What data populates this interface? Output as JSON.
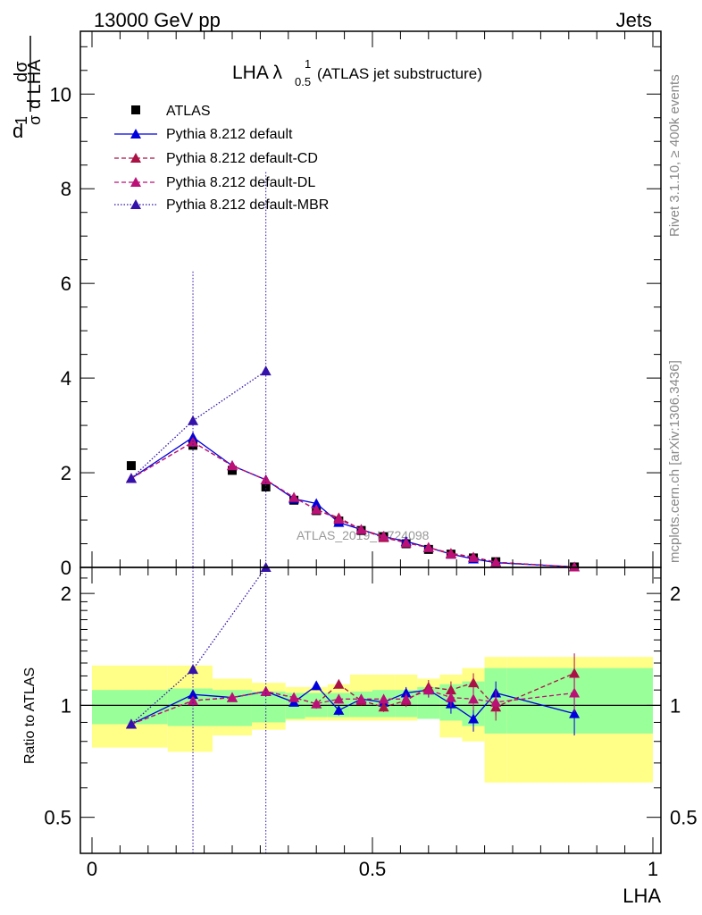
{
  "header": {
    "energy_label": "13000 GeV pp",
    "process_label": "Jets"
  },
  "side_labels": {
    "rivet": "Rivet 3.1.10, ≥ 400k events",
    "mcplots": "mcplots.cern.ch [arXiv:1306.3436]"
  },
  "plot": {
    "title_main": "LHA λ",
    "title_sup": "1",
    "title_sub": "0.5",
    "title_rest": "(ATLAS jet substructure)",
    "ylabel_top": "dσ",
    "ylabel_bottom": "d LHA",
    "ylabel_prefix_top": "1",
    "ylabel_prefix_bottom": "σ",
    "ylabel_d": "d",
    "ratio_ylabel": "Ratio to ATLAS",
    "xlabel": "LHA",
    "watermark": "ATLAS_2019_I1724098"
  },
  "colors": {
    "atlas": "#000000",
    "default": "#0000dd",
    "cd": "#aa1144",
    "dl": "#bb1177",
    "mbr": "#3311aa",
    "band_inner": "#99ff99",
    "band_outer": "#ffff88"
  },
  "chart_data": {
    "type": "scatter",
    "title": "LHA λ^1_0.5 (ATLAS jet substructure)",
    "xlabel": "LHA",
    "ylabel": "1/σ dσ/d LHA",
    "xlim": [
      0,
      1
    ],
    "ylim": [
      0,
      11.5
    ],
    "ratio_ylim": [
      0.4,
      2.35
    ],
    "x_ticks": [
      "0",
      "0.5",
      "1"
    ],
    "y_ticks": [
      "0",
      "2",
      "4",
      "6",
      "8",
      "10"
    ],
    "ratio_ticks": [
      "0.5",
      "1",
      "2"
    ],
    "x": [
      0.07,
      0.18,
      0.25,
      0.31,
      0.36,
      0.4,
      0.44,
      0.48,
      0.52,
      0.56,
      0.6,
      0.64,
      0.68,
      0.72,
      0.86
    ],
    "series": [
      {
        "name": "ATLAS",
        "style": "square",
        "values": [
          2.15,
          2.58,
          2.05,
          1.7,
          1.42,
          1.2,
          0.98,
          0.78,
          0.65,
          0.5,
          0.38,
          0.28,
          0.2,
          0.12,
          0.01
        ]
      },
      {
        "name": "Pythia 8.212 default",
        "style": "solid",
        "values": [
          1.88,
          2.75,
          2.15,
          1.85,
          1.45,
          1.35,
          0.95,
          0.8,
          0.65,
          0.55,
          0.42,
          0.28,
          0.18,
          0.1,
          0.01
        ],
        "ratio": [
          0.89,
          1.07,
          1.05,
          1.09,
          1.02,
          1.13,
          0.97,
          1.04,
          1.02,
          1.08,
          1.1,
          1.01,
          0.92,
          1.08,
          0.95
        ],
        "ratio_err": [
          0.02,
          0.03,
          0.02,
          0.02,
          0.02,
          0.03,
          0.03,
          0.03,
          0.03,
          0.04,
          0.05,
          0.06,
          0.07,
          0.08,
          0.12
        ]
      },
      {
        "name": "Pythia 8.212 default-CD",
        "style": "dashed",
        "values": [
          1.88,
          2.65,
          2.15,
          1.85,
          1.48,
          1.22,
          1.05,
          0.8,
          0.63,
          0.52,
          0.42,
          0.3,
          0.22,
          0.11,
          0.01
        ],
        "ratio": [
          0.89,
          1.03,
          1.05,
          1.09,
          1.05,
          1.01,
          1.14,
          1.03,
          0.99,
          1.03,
          1.12,
          1.1,
          1.15,
          0.99,
          1.22
        ],
        "ratio_err": [
          0.02,
          0.03,
          0.02,
          0.02,
          0.02,
          0.03,
          0.03,
          0.03,
          0.03,
          0.04,
          0.05,
          0.06,
          0.07,
          0.08,
          0.16
        ]
      },
      {
        "name": "Pythia 8.212 default-DL",
        "style": "dashed",
        "values": [
          1.88,
          2.65,
          2.15,
          1.85,
          1.48,
          1.22,
          1.02,
          0.8,
          0.66,
          0.52,
          0.42,
          0.28,
          0.21,
          0.11,
          0.01
        ],
        "ratio": [
          0.89,
          1.03,
          1.05,
          1.09,
          1.05,
          1.01,
          1.04,
          1.04,
          1.04,
          1.04,
          1.1,
          1.05,
          1.04,
          1.02,
          1.08
        ],
        "ratio_err": [
          0.02,
          0.03,
          0.02,
          0.02,
          0.02,
          0.03,
          0.03,
          0.03,
          0.03,
          0.04,
          0.05,
          0.06,
          0.07,
          0.08,
          0.12
        ]
      },
      {
        "name": "Pythia 8.212 default-MBR",
        "style": "dotted",
        "x": [
          0.07,
          0.18,
          0.31
        ],
        "values": [
          1.88,
          3.1,
          4.15
        ],
        "errors_up": [
          null,
          6.25,
          8.35
        ],
        "ratio": [
          0.89,
          1.25,
          2.35
        ]
      }
    ],
    "bands": {
      "edges": [
        0.0,
        0.135,
        0.215,
        0.285,
        0.345,
        0.38,
        0.42,
        0.46,
        0.5,
        0.54,
        0.58,
        0.62,
        0.66,
        0.7,
        0.74,
        1.0
      ],
      "inner_lo": [
        0.89,
        0.88,
        0.88,
        0.9,
        0.92,
        0.93,
        0.93,
        0.93,
        0.93,
        0.93,
        0.92,
        0.91,
        0.88,
        0.84,
        0.84
      ],
      "inner_hi": [
        1.1,
        1.11,
        1.1,
        1.09,
        1.08,
        1.08,
        1.08,
        1.09,
        1.1,
        1.1,
        1.12,
        1.14,
        1.16,
        1.26,
        1.26
      ],
      "outer_lo": [
        0.77,
        0.75,
        0.83,
        0.86,
        0.91,
        0.91,
        0.91,
        0.91,
        0.91,
        0.91,
        0.92,
        0.82,
        0.8,
        0.62,
        0.62
      ],
      "outer_hi": [
        1.28,
        1.28,
        1.18,
        1.15,
        1.12,
        1.12,
        1.14,
        1.21,
        1.21,
        1.21,
        1.18,
        1.21,
        1.26,
        1.35,
        1.35
      ]
    }
  }
}
